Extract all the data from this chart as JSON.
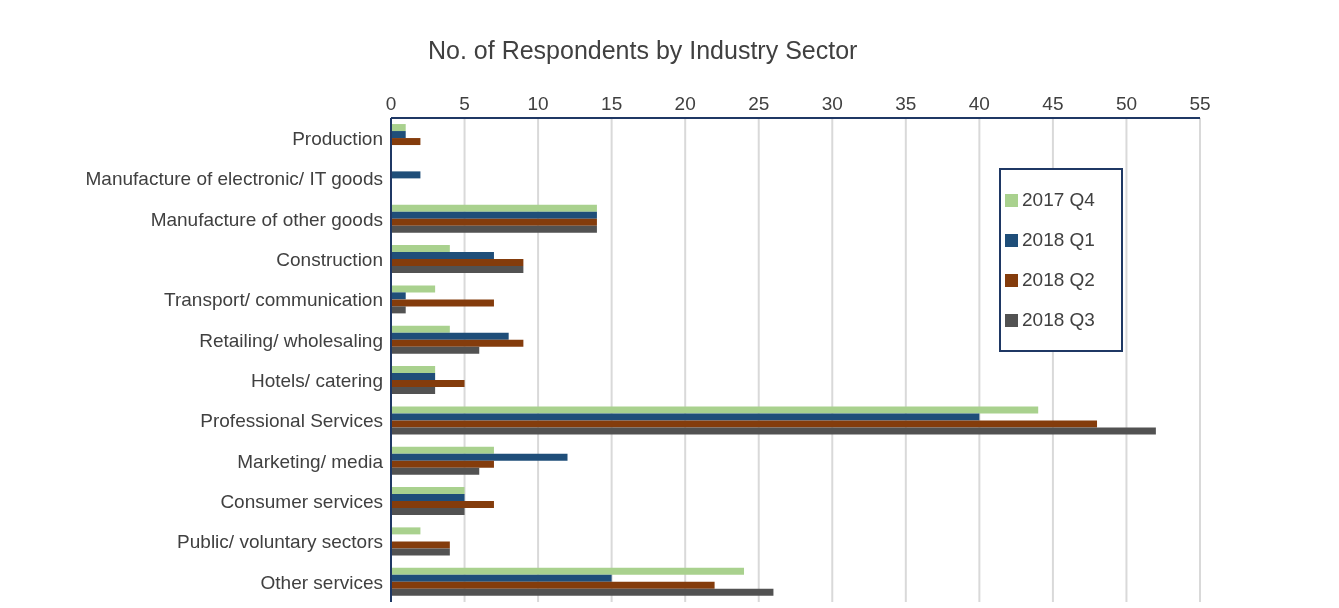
{
  "chart_data": {
    "type": "bar",
    "orientation": "horizontal",
    "title": "No. of Respondents by Industry Sector",
    "categories": [
      "Production",
      "Manufacture of electronic/ IT goods",
      "Manufacture of other goods",
      "Construction",
      "Transport/ communication",
      "Retailing/ wholesaling",
      "Hotels/ catering",
      "Professional Services",
      "Marketing/ media",
      "Consumer services",
      "Public/ voluntary sectors",
      "Other services"
    ],
    "series": [
      {
        "name": "2017 Q4",
        "color": "#a9d18e",
        "values": [
          1,
          0,
          14,
          4,
          3,
          4,
          3,
          44,
          7,
          5,
          2,
          24
        ]
      },
      {
        "name": "2018 Q1",
        "color": "#1f4e79",
        "values": [
          1,
          2,
          14,
          7,
          1,
          8,
          3,
          40,
          12,
          5,
          0,
          15
        ]
      },
      {
        "name": "2018 Q2",
        "color": "#843c0c",
        "values": [
          2,
          0,
          14,
          9,
          7,
          9,
          5,
          48,
          7,
          7,
          4,
          22
        ]
      },
      {
        "name": "2018 Q3",
        "color": "#525252",
        "values": [
          0,
          0,
          14,
          9,
          1,
          6,
          3,
          52,
          6,
          5,
          4,
          26
        ]
      }
    ],
    "xlim": [
      0,
      55
    ],
    "xticks": [
      0,
      5,
      10,
      15,
      20,
      25,
      30,
      35,
      40,
      45,
      50,
      55
    ],
    "grid": "x",
    "legend": "top right"
  }
}
